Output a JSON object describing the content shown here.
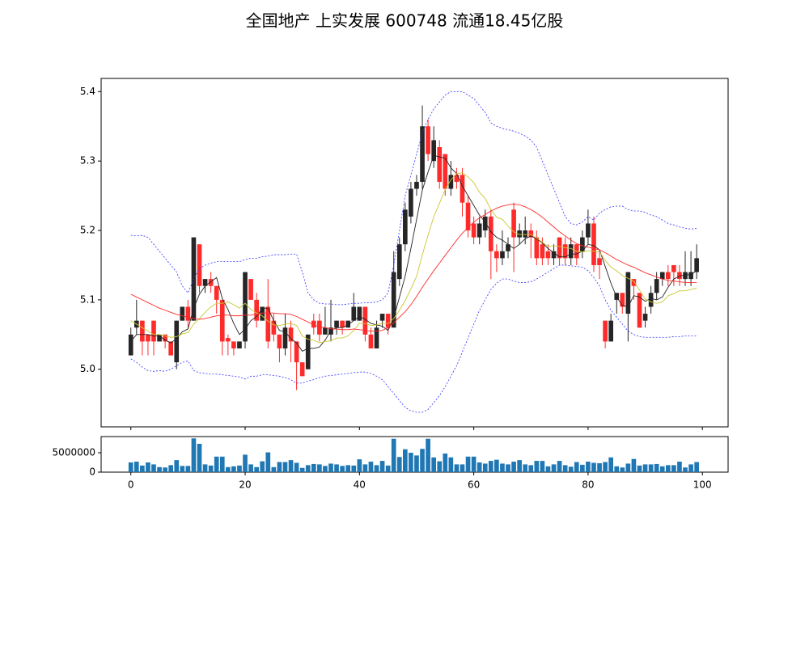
{
  "chart_data": [
    {
      "type": "candlestick",
      "title": "全国地产 上实发展 600748 流通18.45亿股",
      "x": [
        0,
        1,
        2,
        3,
        4,
        5,
        6,
        7,
        8,
        9,
        10,
        11,
        12,
        13,
        14,
        15,
        16,
        17,
        18,
        19,
        20,
        21,
        22,
        23,
        24,
        25,
        26,
        27,
        28,
        29,
        30,
        31,
        32,
        33,
        34,
        35,
        36,
        37,
        38,
        39,
        40,
        41,
        42,
        43,
        44,
        45,
        46,
        47,
        48,
        49,
        50,
        51,
        52,
        53,
        54,
        55,
        56,
        57,
        58,
        59,
        60,
        61,
        62,
        63,
        64,
        65,
        66,
        67,
        68,
        69,
        70,
        71,
        72,
        73,
        74,
        75,
        76,
        77,
        78,
        79,
        80,
        81,
        82,
        83,
        84,
        85,
        86,
        87,
        88,
        89,
        90,
        91,
        92,
        93,
        94,
        95,
        96,
        97,
        98,
        99
      ],
      "open": [
        5.02,
        5.06,
        5.07,
        5.05,
        5.07,
        5.04,
        5.05,
        5.04,
        5.01,
        5.07,
        5.09,
        5.07,
        5.18,
        5.12,
        5.13,
        5.12,
        5.1,
        5.045,
        5.04,
        5.03,
        5.04,
        5.13,
        5.1,
        5.07,
        5.09,
        5.07,
        5.05,
        5.03,
        5.06,
        5.04,
        5.01,
        5.0,
        5.07,
        5.07,
        5.05,
        5.05,
        5.06,
        5.07,
        5.06,
        5.07,
        5.07,
        5.09,
        5.05,
        5.03,
        5.07,
        5.08,
        5.06,
        5.13,
        5.18,
        5.22,
        5.26,
        5.27,
        5.35,
        5.3,
        5.32,
        5.31,
        5.26,
        5.28,
        5.28,
        5.24,
        5.21,
        5.19,
        5.2,
        5.22,
        5.17,
        5.16,
        5.17,
        5.23,
        5.19,
        5.19,
        5.2,
        5.19,
        5.18,
        5.17,
        5.16,
        5.19,
        5.18,
        5.16,
        5.18,
        5.17,
        5.19,
        5.21,
        5.16,
        5.07,
        5.04,
        5.1,
        5.11,
        5.08,
        5.13,
        5.11,
        5.07,
        5.09,
        5.11,
        5.13,
        5.14,
        5.15,
        5.14,
        5.13,
        5.13,
        5.14
      ],
      "high": [
        5.06,
        5.1,
        5.07,
        5.05,
        5.07,
        5.05,
        5.05,
        5.04,
        5.07,
        5.09,
        5.1,
        5.19,
        5.18,
        5.13,
        5.14,
        5.12,
        5.1,
        5.05,
        5.04,
        5.04,
        5.14,
        5.13,
        5.11,
        5.09,
        5.13,
        5.08,
        5.05,
        5.08,
        5.07,
        5.04,
        5.01,
        5.05,
        5.08,
        5.08,
        5.09,
        5.1,
        5.07,
        5.07,
        5.07,
        5.11,
        5.09,
        5.09,
        5.06,
        5.07,
        5.08,
        5.08,
        5.17,
        5.19,
        5.24,
        5.27,
        5.28,
        5.38,
        5.36,
        5.35,
        5.33,
        5.31,
        5.3,
        5.29,
        5.29,
        5.25,
        5.22,
        5.22,
        5.23,
        5.23,
        5.18,
        5.2,
        5.19,
        5.24,
        5.21,
        5.22,
        5.21,
        5.2,
        5.19,
        5.18,
        5.18,
        5.19,
        5.19,
        5.19,
        5.18,
        5.2,
        5.23,
        5.22,
        5.17,
        5.07,
        5.08,
        5.11,
        5.11,
        5.14,
        5.13,
        5.11,
        5.09,
        5.12,
        5.14,
        5.14,
        5.15,
        5.15,
        5.15,
        5.17,
        5.17,
        5.18
      ],
      "low": [
        5.02,
        5.05,
        5.02,
        5.02,
        5.02,
        5.04,
        5.03,
        5.02,
        5.0,
        5.07,
        5.06,
        5.07,
        5.11,
        5.11,
        5.11,
        5.08,
        5.02,
        5.02,
        5.02,
        5.03,
        5.03,
        5.1,
        5.06,
        5.07,
        5.03,
        5.04,
        5.01,
        5.02,
        5.01,
        4.97,
        4.99,
        5.0,
        5.05,
        5.04,
        5.05,
        5.04,
        5.05,
        5.05,
        5.06,
        5.07,
        5.07,
        5.04,
        5.03,
        5.03,
        5.06,
        5.05,
        5.06,
        5.12,
        5.17,
        5.21,
        5.25,
        5.26,
        5.3,
        5.29,
        5.26,
        5.25,
        5.25,
        5.26,
        5.22,
        5.19,
        5.18,
        5.18,
        5.19,
        5.13,
        5.14,
        5.15,
        5.16,
        5.14,
        5.18,
        5.18,
        5.16,
        5.15,
        5.15,
        5.15,
        5.15,
        5.15,
        5.15,
        5.15,
        5.15,
        5.16,
        5.18,
        5.14,
        5.13,
        5.03,
        5.04,
        5.08,
        5.08,
        5.04,
        5.1,
        5.06,
        5.06,
        5.08,
        5.1,
        5.12,
        5.12,
        5.12,
        5.12,
        5.12,
        5.12,
        5.13
      ],
      "close": [
        5.05,
        5.07,
        5.04,
        5.04,
        5.04,
        5.05,
        5.04,
        5.02,
        5.07,
        5.09,
        5.07,
        5.19,
        5.12,
        5.13,
        5.12,
        5.1,
        5.04,
        5.04,
        5.03,
        5.04,
        5.14,
        5.1,
        5.07,
        5.09,
        5.04,
        5.05,
        5.03,
        5.06,
        5.04,
        5.01,
        4.99,
        5.05,
        5.06,
        5.05,
        5.06,
        5.06,
        5.07,
        5.06,
        5.07,
        5.09,
        5.09,
        5.05,
        5.03,
        5.06,
        5.08,
        5.06,
        5.14,
        5.18,
        5.23,
        5.26,
        5.27,
        5.35,
        5.31,
        5.33,
        5.27,
        5.26,
        5.28,
        5.27,
        5.24,
        5.2,
        5.19,
        5.21,
        5.22,
        5.17,
        5.16,
        5.17,
        5.18,
        5.19,
        5.2,
        5.2,
        5.19,
        5.16,
        5.16,
        5.16,
        5.17,
        5.16,
        5.16,
        5.18,
        5.16,
        5.19,
        5.21,
        5.15,
        5.15,
        5.04,
        5.07,
        5.11,
        5.09,
        5.14,
        5.12,
        5.06,
        5.08,
        5.11,
        5.13,
        5.14,
        5.13,
        5.14,
        5.13,
        5.14,
        5.14,
        5.16
      ],
      "up_color": "#262626",
      "down_color": "#ff2a2a",
      "lines": [
        {
          "color": "#222222",
          "style": "solid",
          "values": [
            5.04,
            5.05,
            5.05,
            5.05,
            5.048,
            5.048,
            5.042,
            5.038,
            5.044,
            5.054,
            5.058,
            5.088,
            5.108,
            5.12,
            5.126,
            5.132,
            5.102,
            5.086,
            5.066,
            5.05,
            5.058,
            5.07,
            5.076,
            5.088,
            5.088,
            5.07,
            5.056,
            5.054,
            5.044,
            5.038,
            5.026,
            5.03,
            5.03,
            5.032,
            5.042,
            5.056,
            5.06,
            5.06,
            5.064,
            5.07,
            5.076,
            5.072,
            5.066,
            5.064,
            5.062,
            5.056,
            5.074,
            5.104,
            5.134,
            5.174,
            5.216,
            5.258,
            5.284,
            5.308,
            5.306,
            5.304,
            5.29,
            5.282,
            5.264,
            5.25,
            5.236,
            5.222,
            5.212,
            5.198,
            5.19,
            5.186,
            5.18,
            5.174,
            5.18,
            5.188,
            5.192,
            5.188,
            5.182,
            5.174,
            5.168,
            5.162,
            5.162,
            5.166,
            5.166,
            5.17,
            5.18,
            5.178,
            5.172,
            5.148,
            5.124,
            5.104,
            5.092,
            5.09,
            5.106,
            5.104,
            5.098,
            5.102,
            5.1,
            5.104,
            5.118,
            5.13,
            5.134,
            5.136,
            5.136,
            5.142
          ]
        },
        {
          "color": "#c8c832",
          "style": "solid",
          "values": [
            5.07,
            5.065,
            5.06,
            5.055,
            5.05,
            5.05,
            5.048,
            5.046,
            5.047,
            5.051,
            5.053,
            5.065,
            5.073,
            5.082,
            5.09,
            5.095,
            5.095,
            5.097,
            5.093,
            5.088,
            5.095,
            5.086,
            5.081,
            5.077,
            5.069,
            5.064,
            5.063,
            5.065,
            5.066,
            5.063,
            5.048,
            5.043,
            5.042,
            5.038,
            5.04,
            5.041,
            5.045,
            5.045,
            5.048,
            5.056,
            5.066,
            5.066,
            5.063,
            5.064,
            5.066,
            5.066,
            5.073,
            5.085,
            5.099,
            5.116,
            5.134,
            5.165,
            5.193,
            5.22,
            5.239,
            5.259,
            5.273,
            5.282,
            5.283,
            5.277,
            5.269,
            5.255,
            5.246,
            5.23,
            5.219,
            5.216,
            5.206,
            5.198,
            5.194,
            5.194,
            5.194,
            5.189,
            5.183,
            5.177,
            5.178,
            5.177,
            5.175,
            5.174,
            5.17,
            5.169,
            5.171,
            5.17,
            5.169,
            5.157,
            5.147,
            5.142,
            5.135,
            5.131,
            5.127,
            5.114,
            5.101,
            5.097,
            5.095,
            5.097,
            5.106,
            5.109,
            5.113,
            5.113,
            5.115,
            5.117
          ]
        },
        {
          "color": "#ff2a2a",
          "style": "solid",
          "values": [
            5.108,
            5.104,
            5.1,
            5.096,
            5.092,
            5.088,
            5.085,
            5.082,
            5.079,
            5.077,
            5.075,
            5.073,
            5.072,
            5.073,
            5.075,
            5.077,
            5.078,
            5.078,
            5.077,
            5.077,
            5.078,
            5.078,
            5.079,
            5.081,
            5.081,
            5.081,
            5.08,
            5.08,
            5.079,
            5.076,
            5.072,
            5.068,
            5.064,
            5.061,
            5.06,
            5.058,
            5.058,
            5.057,
            5.057,
            5.058,
            5.057,
            5.056,
            5.055,
            5.055,
            5.056,
            5.06,
            5.067,
            5.075,
            5.083,
            5.093,
            5.105,
            5.118,
            5.13,
            5.142,
            5.153,
            5.164,
            5.175,
            5.186,
            5.196,
            5.204,
            5.212,
            5.218,
            5.223,
            5.228,
            5.232,
            5.235,
            5.237,
            5.238,
            5.237,
            5.234,
            5.23,
            5.225,
            5.219,
            5.212,
            5.205,
            5.198,
            5.192,
            5.186,
            5.181,
            5.178,
            5.176,
            5.174,
            5.172,
            5.168,
            5.163,
            5.158,
            5.154,
            5.15,
            5.147,
            5.143,
            5.139,
            5.136,
            5.133,
            5.13,
            5.128,
            5.127,
            5.126,
            5.125,
            5.125,
            5.125
          ]
        },
        {
          "color": "#3333ff",
          "style": "dashed",
          "values": [
            5.193,
            5.192,
            5.193,
            5.19,
            5.18,
            5.17,
            5.16,
            5.15,
            5.14,
            5.12,
            5.11,
            5.13,
            5.145,
            5.15,
            5.153,
            5.155,
            5.155,
            5.155,
            5.155,
            5.155,
            5.158,
            5.16,
            5.16,
            5.162,
            5.163,
            5.165,
            5.165,
            5.165,
            5.166,
            5.166,
            5.14,
            5.11,
            5.1,
            5.095,
            5.094,
            5.094,
            5.093,
            5.093,
            5.094,
            5.095,
            5.095,
            5.096,
            5.096,
            5.097,
            5.1,
            5.11,
            5.15,
            5.2,
            5.25,
            5.28,
            5.31,
            5.34,
            5.36,
            5.375,
            5.385,
            5.395,
            5.4,
            5.4,
            5.4,
            5.395,
            5.39,
            5.38,
            5.37,
            5.355,
            5.35,
            5.347,
            5.345,
            5.343,
            5.34,
            5.336,
            5.33,
            5.32,
            5.3,
            5.28,
            5.26,
            5.24,
            5.22,
            5.21,
            5.208,
            5.212,
            5.22,
            5.215,
            5.225,
            5.23,
            5.234,
            5.235,
            5.235,
            5.23,
            5.228,
            5.228,
            5.226,
            5.222,
            5.22,
            5.215,
            5.21,
            5.208,
            5.205,
            5.203,
            5.202,
            5.203
          ]
        },
        {
          "color": "#3333ff",
          "style": "dashed",
          "values": [
            5.015,
            5.01,
            5.003,
            4.998,
            4.997,
            4.998,
            4.997,
            5.0,
            5.005,
            5.01,
            5.012,
            4.998,
            4.995,
            4.994,
            4.993,
            4.993,
            4.992,
            4.991,
            4.99,
            4.989,
            4.986,
            4.99,
            4.99,
            4.992,
            4.992,
            4.991,
            4.99,
            4.988,
            4.985,
            4.98,
            4.98,
            4.983,
            4.985,
            4.988,
            4.99,
            4.991,
            4.992,
            4.993,
            4.994,
            4.995,
            4.996,
            4.996,
            4.994,
            4.99,
            4.985,
            4.975,
            4.965,
            4.955,
            4.945,
            4.94,
            4.938,
            4.938,
            4.942,
            4.952,
            4.962,
            4.975,
            4.99,
            5.005,
            5.025,
            5.045,
            5.065,
            5.085,
            5.1,
            5.115,
            5.124,
            5.13,
            5.13,
            5.127,
            5.125,
            5.125,
            5.126,
            5.13,
            5.135,
            5.14,
            5.145,
            5.15,
            5.15,
            5.149,
            5.148,
            5.147,
            5.142,
            5.132,
            5.12,
            5.1,
            5.085,
            5.075,
            5.065,
            5.055,
            5.05,
            5.047,
            5.046,
            5.046,
            5.046,
            5.046,
            5.046,
            5.047,
            5.047,
            5.048,
            5.048,
            5.048
          ]
        }
      ],
      "xlim": [
        -5.2,
        104.5
      ],
      "ylim": [
        4.917,
        5.419
      ],
      "yticks": [
        {
          "value": 5,
          "label": "5.0"
        },
        5.1,
        5.2,
        5.3,
        5.4
      ]
    },
    {
      "type": "bar",
      "color": "#1f77b4",
      "values": [
        2500000,
        2700000,
        1700000,
        2500000,
        2000000,
        1300000,
        1200000,
        1800000,
        3100000,
        1600000,
        1600000,
        8700000,
        7300000,
        2000000,
        1700000,
        4000000,
        4000000,
        1300000,
        1500000,
        1700000,
        4500000,
        2000000,
        1300000,
        2800000,
        5100000,
        1300000,
        2600000,
        2600000,
        3100000,
        2400000,
        1100000,
        1800000,
        2100000,
        2000000,
        1600000,
        2200000,
        2000000,
        1600000,
        1800000,
        1700000,
        3300000,
        2000000,
        2700000,
        1800000,
        2900000,
        1700000,
        8600000,
        3900000,
        5900000,
        5000000,
        4300000,
        6000000,
        8600000,
        3800000,
        2800000,
        4800000,
        3800000,
        2000000,
        2000000,
        4000000,
        4000000,
        2500000,
        2200000,
        2900000,
        3200000,
        2200000,
        2000000,
        2700000,
        3100000,
        2000000,
        1800000,
        2900000,
        2900000,
        1500000,
        2000000,
        2900000,
        1800000,
        1400000,
        2600000,
        1900000,
        2700000,
        2400000,
        2300000,
        2600000,
        3800000,
        1500000,
        1200000,
        2200000,
        3400000,
        1700000,
        2000000,
        2000000,
        2100000,
        1500000,
        1800000,
        1800000,
        2700000,
        1200000,
        2000000,
        2600000
      ],
      "xlim": [
        -5.2,
        104.5
      ],
      "ylim": [
        0,
        9170000
      ],
      "xticks": [
        0,
        20,
        40,
        60,
        80,
        100
      ],
      "yticks": [
        0,
        5000000
      ]
    }
  ]
}
